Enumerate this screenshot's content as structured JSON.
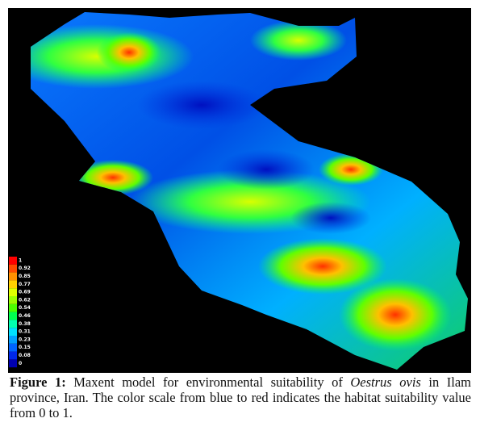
{
  "figure": {
    "legend": [
      {
        "label": "1",
        "color": "#ff0000"
      },
      {
        "label": "0.92",
        "color": "#ff4a00"
      },
      {
        "label": "0.85",
        "color": "#ff9000"
      },
      {
        "label": "0.77",
        "color": "#ffd000"
      },
      {
        "label": "0.69",
        "color": "#e0ff00"
      },
      {
        "label": "0.62",
        "color": "#9cff00"
      },
      {
        "label": "0.54",
        "color": "#4cff00"
      },
      {
        "label": "0.46",
        "color": "#00ff50"
      },
      {
        "label": "0.38",
        "color": "#00ffb0"
      },
      {
        "label": "0.31",
        "color": "#00e0ff"
      },
      {
        "label": "0.23",
        "color": "#00a0ff"
      },
      {
        "label": "0.15",
        "color": "#0064ff"
      },
      {
        "label": "0.08",
        "color": "#0028e8"
      },
      {
        "label": "0",
        "color": "#0000b0"
      }
    ],
    "caption": {
      "label": "Figure 1:",
      "text_before": " Maxent model for environmental suitability of ",
      "species": "Oestrus ovis",
      "text_after": " in Ilam province, Iran. The color scale from blue to red indicates the habitat suitability value from 0 to 1."
    }
  }
}
